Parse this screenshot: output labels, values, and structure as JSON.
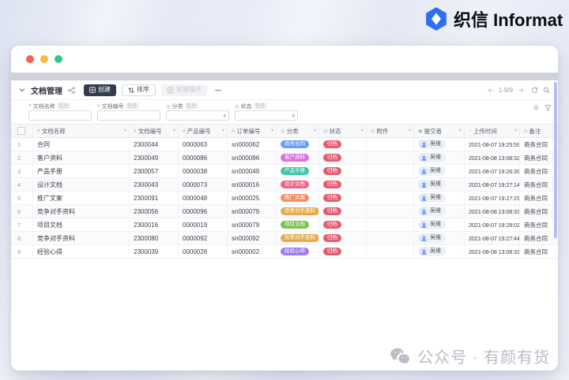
{
  "logo": {
    "cn": "织信",
    "en": "Informat"
  },
  "watermark": {
    "text": "公众号 · 有颜有货"
  },
  "window": {
    "toolbar": {
      "title": "文档管理",
      "create_label": "创建",
      "sort_label": "排序",
      "batch_label": "批量操作",
      "pagination": "1-9/9"
    },
    "filters": [
      {
        "label": "文档名称",
        "op": "包含",
        "type": "input",
        "icon": "≡"
      },
      {
        "label": "文档编号",
        "op": "包含",
        "type": "input",
        "icon": "#"
      },
      {
        "label": "分类",
        "op": "包含",
        "type": "select",
        "icon": "◎"
      },
      {
        "label": "状态",
        "op": "包含",
        "type": "select",
        "icon": "◎"
      }
    ],
    "table": {
      "columns": [
        {
          "key": "name",
          "label": "文档名称",
          "icon": "≡"
        },
        {
          "key": "doc_no",
          "label": "文档编号",
          "icon": "#"
        },
        {
          "key": "prod_no",
          "label": "产品编号",
          "icon": "#"
        },
        {
          "key": "order_no",
          "label": "订单编号",
          "icon": "A"
        },
        {
          "key": "category",
          "label": "分类",
          "icon": "◎"
        },
        {
          "key": "status",
          "label": "状态",
          "icon": "◎"
        },
        {
          "key": "attach",
          "label": "附件",
          "icon": "⊙"
        },
        {
          "key": "submitter",
          "label": "提交者",
          "icon": "◉"
        },
        {
          "key": "time",
          "label": "上传时间",
          "icon": "◔"
        },
        {
          "key": "remark",
          "label": "备注",
          "icon": "A",
          "caret": false
        }
      ],
      "category_colors": {
        "商务合同": "#6b9df8",
        "客户资料": "#de71e2",
        "产品手册": "#3fc6a8",
        "设计文档": "#ee6585",
        "推广文案": "#f58f63",
        "竞争对手资料": "#e7ab4e",
        "项目文档": "#7cc252",
        "经验心得": "#9d7bef"
      },
      "status_color": "#e45c6e",
      "rows": [
        {
          "num": 1,
          "name": "合同",
          "doc_no": "2300044",
          "prod_no": "0000063",
          "order_no": "sn000062",
          "category": "商务合同",
          "status": "归档",
          "submitter": "吴维",
          "time": "2021-08-07 19:25:59",
          "remark": "商务合同"
        },
        {
          "num": 2,
          "name": "客户资料",
          "doc_no": "2300049",
          "prod_no": "0000086",
          "order_no": "sn000086",
          "category": "客户资料",
          "status": "归档",
          "submitter": "吴维",
          "time": "2021-08-08 13:08:32",
          "remark": "商务合同"
        },
        {
          "num": 3,
          "name": "产品手册",
          "doc_no": "2300057",
          "prod_no": "0000038",
          "order_no": "sn000049",
          "category": "产品手册",
          "status": "归档",
          "submitter": "吴维",
          "time": "2021-08-07 19:26:39",
          "remark": "商务合同"
        },
        {
          "num": 4,
          "name": "设计文档",
          "doc_no": "2300043",
          "prod_no": "0000073",
          "order_no": "sn000016",
          "category": "设计文档",
          "status": "归档",
          "submitter": "吴维",
          "time": "2021-08-07 19:27:14",
          "remark": "商务合同"
        },
        {
          "num": 5,
          "name": "推广文案",
          "doc_no": "2300091",
          "prod_no": "0000048",
          "order_no": "sn000025",
          "category": "推广文案",
          "status": "归档",
          "submitter": "吴维",
          "time": "2021-08-07 19:27:29",
          "remark": "商务合同"
        },
        {
          "num": 6,
          "name": "竞争对手资料",
          "doc_no": "2300056",
          "prod_no": "0000096",
          "order_no": "sn000079",
          "category": "竞争对手资料",
          "status": "归档",
          "submitter": "吴维",
          "time": "2021-08-08 13:08:33",
          "remark": "商务合同"
        },
        {
          "num": 7,
          "name": "项目文档",
          "doc_no": "2300016",
          "prod_no": "0000019",
          "order_no": "sn000079",
          "category": "项目文档",
          "status": "归档",
          "submitter": "吴维",
          "time": "2021-08-07 19:28:02",
          "remark": "商务合同"
        },
        {
          "num": 8,
          "name": "竞争对手资料",
          "doc_no": "2300080",
          "prod_no": "0000092",
          "order_no": "sn000092",
          "category": "竞争对手资料",
          "status": "归档",
          "submitter": "吴维",
          "time": "2021-08-07 19:27:44",
          "remark": "商务合同"
        },
        {
          "num": 9,
          "name": "经验心得",
          "doc_no": "2300039",
          "prod_no": "0000026",
          "order_no": "sn000002",
          "category": "经验心得",
          "status": "归档",
          "submitter": "吴维",
          "time": "2021-08-08 13:08:33",
          "remark": "商务合同"
        }
      ]
    }
  }
}
